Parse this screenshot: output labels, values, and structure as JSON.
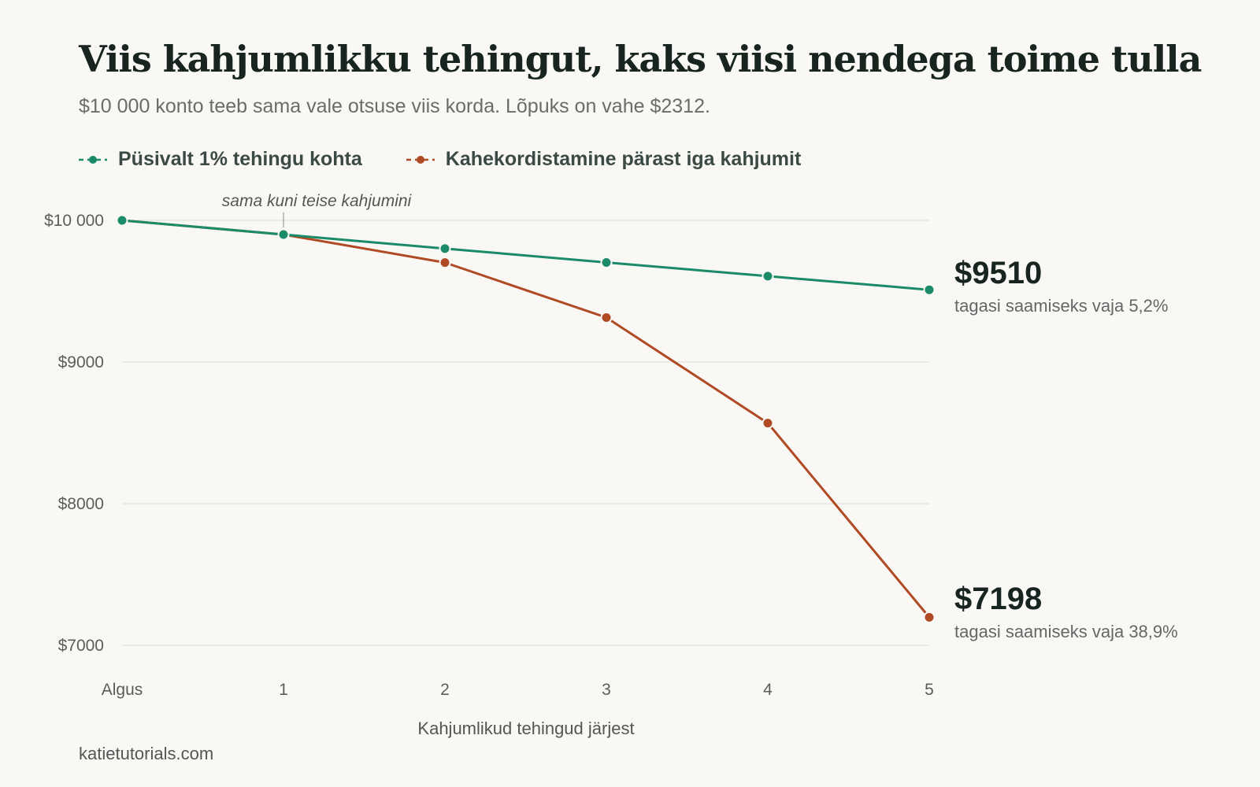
{
  "title": "Viis kahjumlikku tehingut, kaks viisi nendega toime tulla",
  "subtitle": "$10 000 konto teeb sama vale otsuse viis korda. Lõpuks on vahe $2312.",
  "source": "katietutorials.com",
  "colors": {
    "steady": "#1a8a68",
    "doubling": "#b04a24",
    "grid": "#e4e2dd",
    "background": "#f9f8f5"
  },
  "chart_data": {
    "type": "line",
    "categories": [
      "Algus",
      "1",
      "2",
      "3",
      "4",
      "5"
    ],
    "series": [
      {
        "name": "Püsivalt 1% tehingu kohta",
        "values": [
          10000,
          9900,
          9801,
          9703,
          9606,
          9510
        ]
      },
      {
        "name": "Kahekordistamine pärast iga kahjumit",
        "values": [
          10000,
          9900,
          9702,
          9314,
          8569,
          7198
        ]
      }
    ],
    "xlabel": "Kahjumlikud tehingud järjest",
    "ylabel": "",
    "ylim": [
      7000,
      10000
    ],
    "yticks": [
      10000,
      9000,
      8000,
      7000
    ],
    "ytick_labels": [
      "$10 000",
      "$9000",
      "$8000",
      "$7000"
    ],
    "grid": true,
    "legend_position": "top-left",
    "annotation": {
      "text": "sama kuni teise kahjumini",
      "category": "1"
    },
    "end_labels": [
      {
        "value": "$9510",
        "note": "tagasi saamiseks vaja 5,2%"
      },
      {
        "value": "$7198",
        "note": "tagasi saamiseks vaja 38,9%"
      }
    ]
  }
}
